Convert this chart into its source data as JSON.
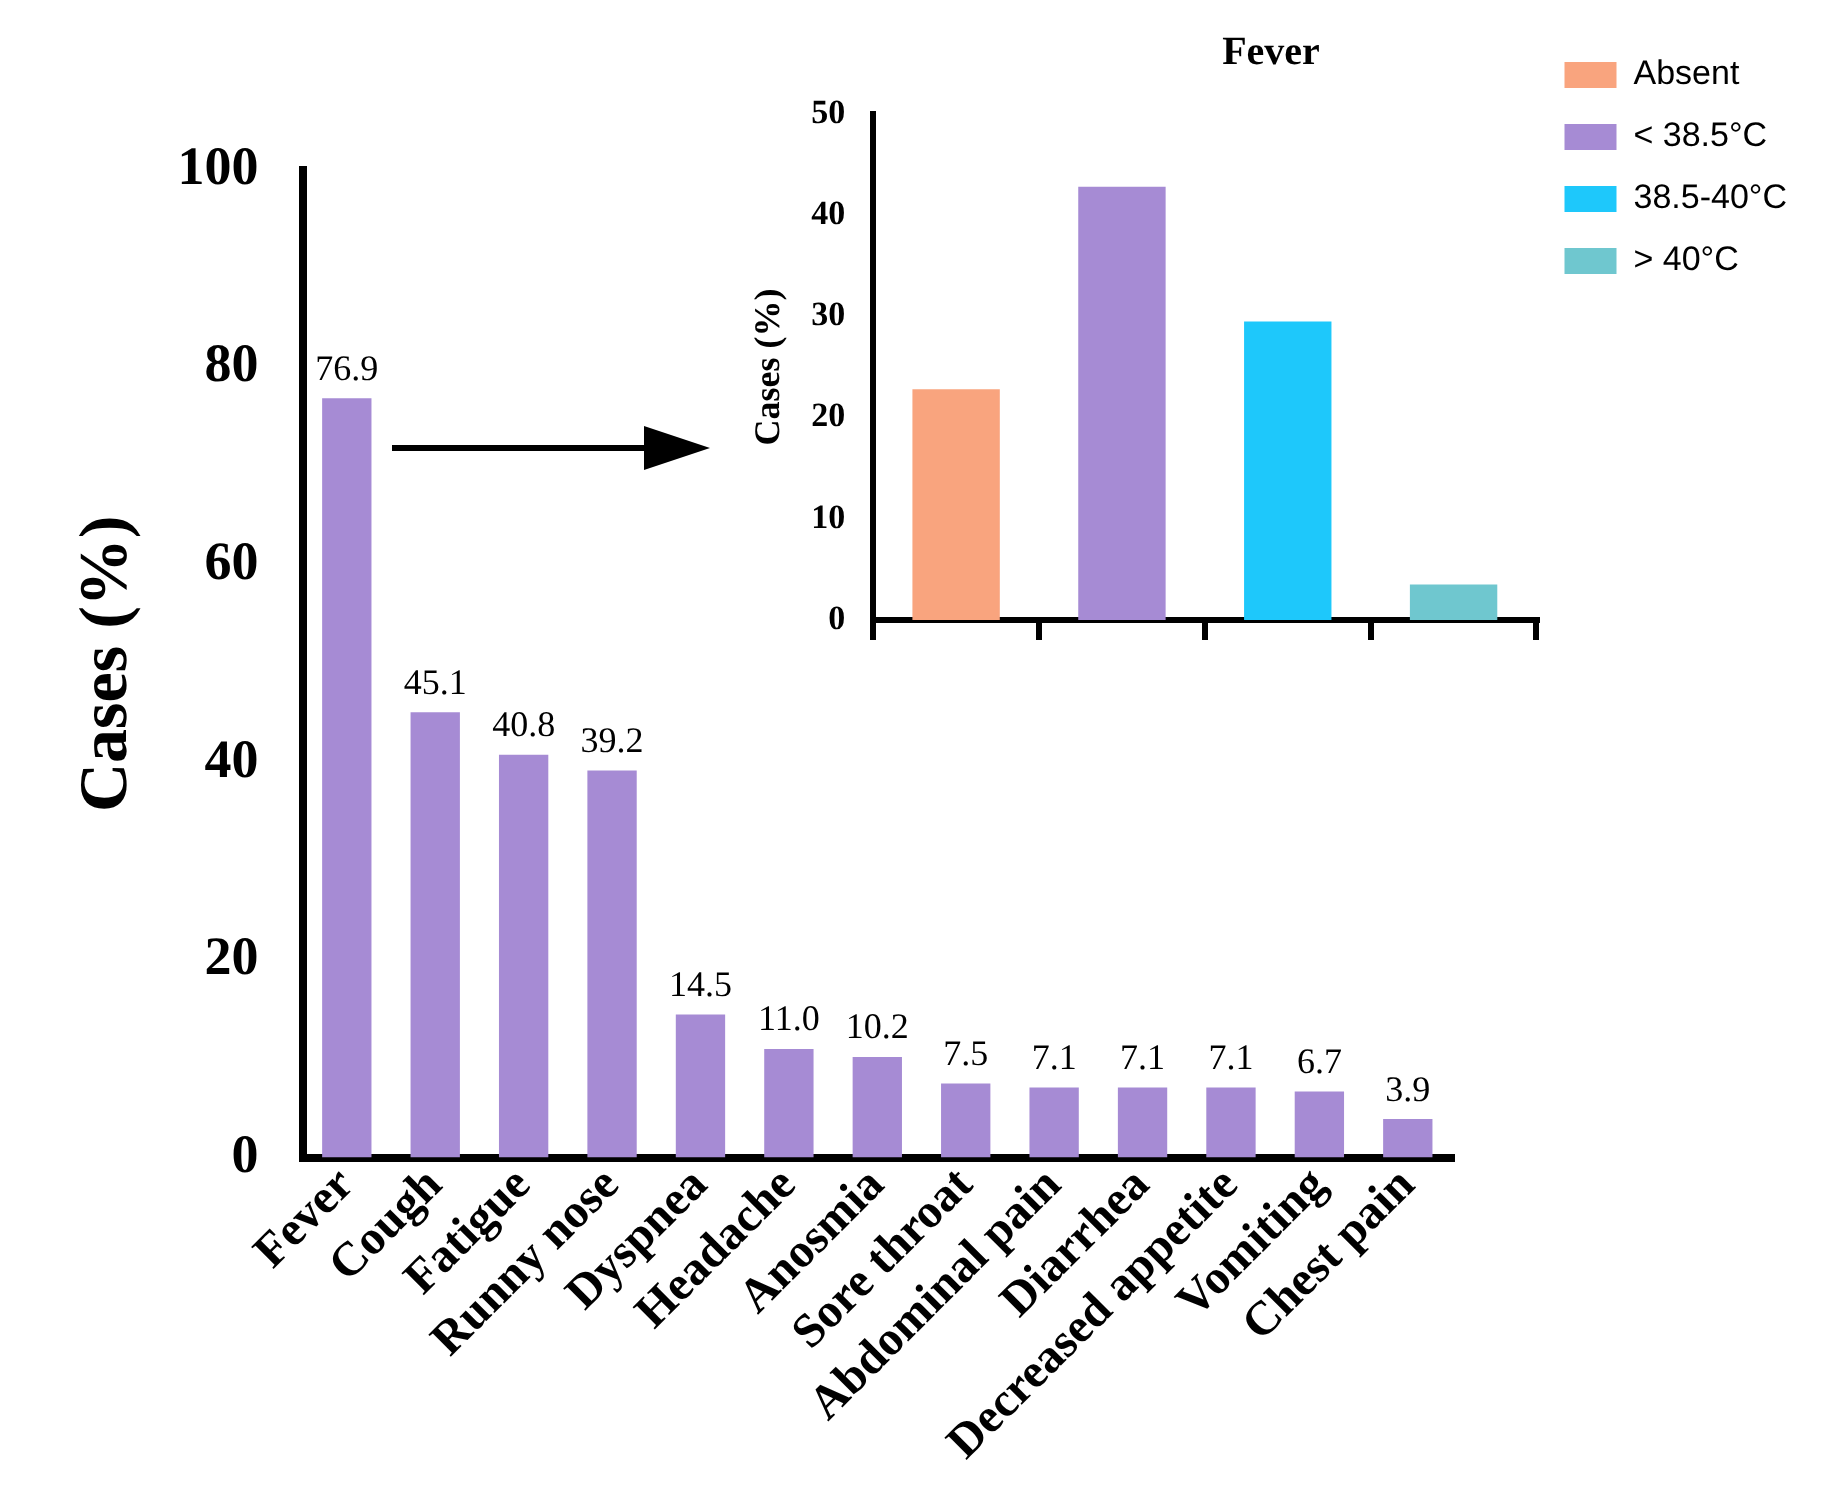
{
  "chart_data": [
    {
      "type": "bar",
      "ylabel": "Cases (%)",
      "categories": [
        "Fever",
        "Cough",
        "Fatigue",
        "Runny nose",
        "Dyspnea",
        "Headache",
        "Anosmia",
        "Sore throat",
        "Abdominal pain",
        "Diarrhea",
        "Decreased appetite",
        "Vomiting",
        "Chest pain"
      ],
      "values": [
        76.9,
        45.1,
        40.8,
        39.2,
        14.5,
        11.0,
        10.2,
        7.5,
        7.1,
        7.1,
        7.1,
        6.7,
        3.9
      ],
      "value_labels": [
        "76.9",
        "45.1",
        "40.8",
        "39.2",
        "14.5",
        "11.0",
        "10.2",
        "7.5",
        "7.1",
        "7.1",
        "7.1",
        "6.7",
        "3.9"
      ],
      "color": "#a68bd4",
      "ylim": [
        0,
        100
      ],
      "yticks": [
        0,
        20,
        40,
        60,
        80,
        100
      ],
      "grid": false,
      "legend": false
    },
    {
      "type": "bar",
      "title": "Fever",
      "ylabel": "Cases (%)",
      "categories": [
        null,
        null,
        null,
        null
      ],
      "series": [
        {
          "name": "Absent",
          "color": "#f9a47e",
          "values": [
            22.8,
            null,
            null,
            null
          ]
        },
        {
          "name": "< 38.5°C",
          "color": "#a68bd4",
          "values": [
            null,
            42.8,
            null,
            null
          ]
        },
        {
          "name": "38.5-40°C",
          "color": "#1ec8fb",
          "values": [
            null,
            null,
            29.5,
            null
          ]
        },
        {
          "name": "> 40°C",
          "color": "#6fc7cf",
          "values": [
            null,
            null,
            null,
            3.5
          ]
        }
      ],
      "ylim": [
        0,
        50
      ],
      "yticks": [
        0,
        10,
        20,
        30,
        40,
        50
      ],
      "grid": false,
      "legend": "right",
      "tick_labels": "y"
    }
  ]
}
